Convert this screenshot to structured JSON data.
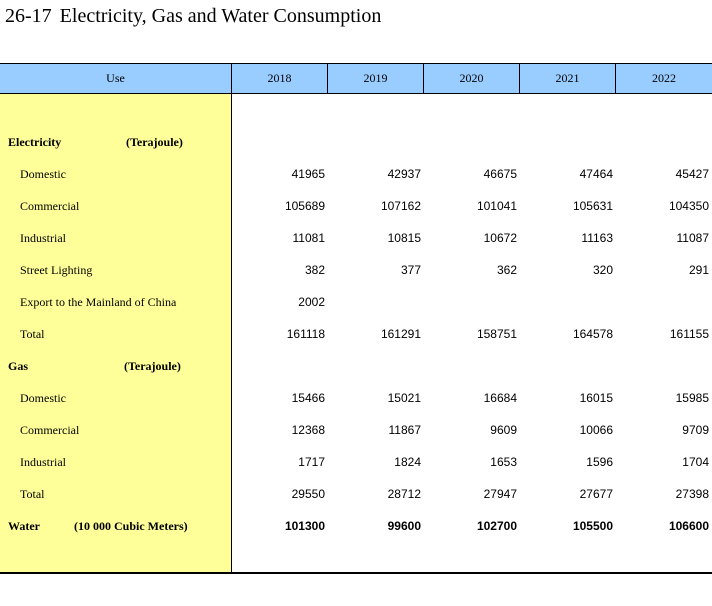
{
  "title": {
    "number": "26-17",
    "text": "Electricity, Gas and Water Consumption"
  },
  "header": {
    "use": "Use",
    "years": [
      "2018",
      "2019",
      "2020",
      "2021",
      "2022"
    ]
  },
  "sections": {
    "electricity": {
      "label": "Electricity",
      "unit": "(Terajoule)",
      "rows": [
        {
          "label": "Domestic",
          "values": [
            "41965",
            "42937",
            "46675",
            "47464",
            "45427"
          ]
        },
        {
          "label": "Commercial",
          "values": [
            "105689",
            "107162",
            "101041",
            "105631",
            "104350"
          ]
        },
        {
          "label": "Industrial",
          "values": [
            "11081",
            "10815",
            "10672",
            "11163",
            "11087"
          ]
        },
        {
          "label": "Street Lighting",
          "values": [
            "382",
            "377",
            "362",
            "320",
            "291"
          ]
        },
        {
          "label": "Export to the Mainland of China",
          "values": [
            "2002",
            "",
            "",
            "",
            ""
          ]
        },
        {
          "label": "Total",
          "values": [
            "161118",
            "161291",
            "158751",
            "164578",
            "161155"
          ]
        }
      ]
    },
    "gas": {
      "label": "Gas",
      "unit": "(Terajoule)",
      "rows": [
        {
          "label": "Domestic",
          "values": [
            "15466",
            "15021",
            "16684",
            "16015",
            "15985"
          ]
        },
        {
          "label": "Commercial",
          "values": [
            "12368",
            "11867",
            "9609",
            "10066",
            "9709"
          ]
        },
        {
          "label": "Industrial",
          "values": [
            "1717",
            "1824",
            "1653",
            "1596",
            "1704"
          ]
        },
        {
          "label": "Total",
          "values": [
            "29550",
            "28712",
            "27947",
            "27677",
            "27398"
          ]
        }
      ]
    },
    "water": {
      "label": "Water",
      "unit": "(10 000 Cubic Meters)",
      "values": [
        "101300",
        "99600",
        "102700",
        "105500",
        "106600"
      ]
    }
  }
}
